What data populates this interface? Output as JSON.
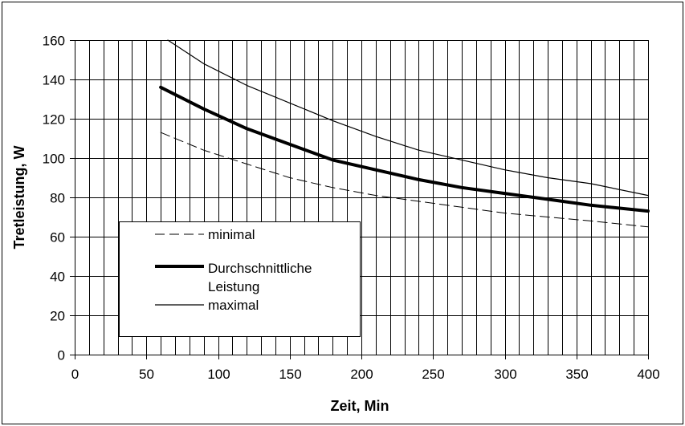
{
  "chart_data": {
    "type": "line",
    "xlabel": "Zeit, Min",
    "ylabel": "Tretleistung, W",
    "xlim": [
      0,
      400
    ],
    "ylim": [
      0,
      160
    ],
    "x_major_ticks": [
      "0",
      "50",
      "100",
      "150",
      "200",
      "250",
      "300",
      "350",
      "400"
    ],
    "y_major_ticks": [
      "0",
      "20",
      "40",
      "60",
      "80",
      "100",
      "120",
      "140",
      "160"
    ],
    "x_minor_grid_step": 10,
    "y_grid_step": 20,
    "grid": true,
    "legend_position": "lower-left",
    "series": [
      {
        "name": "minimal",
        "style": "dashed",
        "color": "#000000",
        "x": [
          60,
          90,
          120,
          150,
          180,
          210,
          240,
          270,
          300,
          330,
          360,
          400
        ],
        "y": [
          113,
          104,
          97,
          90,
          85,
          81,
          78,
          75,
          72,
          70,
          68,
          65
        ]
      },
      {
        "name": "Durchschnittliche Leistung",
        "style": "thick",
        "color": "#000000",
        "x": [
          60,
          90,
          120,
          150,
          180,
          210,
          240,
          270,
          300,
          330,
          360,
          400
        ],
        "y": [
          136,
          125,
          115,
          107,
          99,
          94,
          89,
          85,
          82,
          79,
          76,
          73
        ]
      },
      {
        "name": "maximal",
        "style": "thin",
        "color": "#000000",
        "x": [
          65,
          90,
          120,
          150,
          180,
          210,
          240,
          270,
          300,
          330,
          360,
          400
        ],
        "y": [
          160,
          148,
          137,
          128,
          119,
          111,
          104,
          99,
          94,
          90,
          87,
          81
        ]
      }
    ],
    "legend_entries": [
      "minimal",
      "Durchschnittliche",
      "Leistung",
      "maximal"
    ]
  }
}
